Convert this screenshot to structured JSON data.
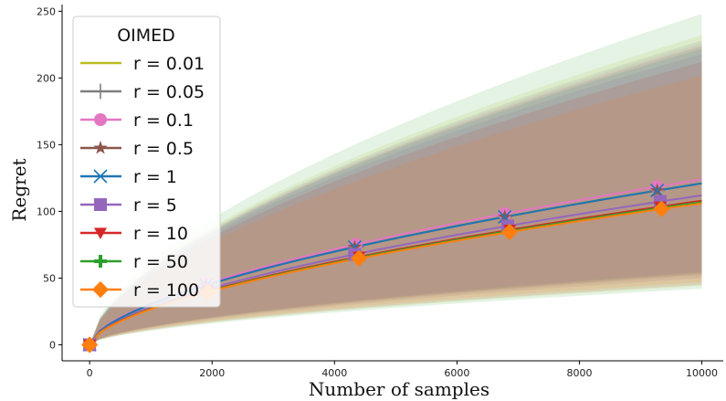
{
  "chart_data": {
    "type": "line",
    "xlabel": "Number of samples",
    "ylabel": "Regret",
    "xlim": [
      -450,
      10350
    ],
    "ylim": [
      -12,
      255
    ],
    "xticks": [
      0,
      2000,
      4000,
      6000,
      8000,
      10000
    ],
    "yticks": [
      0,
      50,
      100,
      150,
      200,
      250
    ],
    "grid": false,
    "legend": {
      "title": "OIMED",
      "placement": "top-left"
    },
    "series": [
      {
        "name": "r = 0.01",
        "color": "#bcbd22",
        "marker": "none",
        "final": 108,
        "band_upper": 232,
        "band_lower": 44,
        "marker_x": []
      },
      {
        "name": "r = 0.05",
        "color": "#7f7f7f",
        "marker": "plus",
        "final": 121,
        "band_upper": 228,
        "band_lower": 52,
        "marker_x": [
          0,
          1900,
          4350,
          6780,
          9270
        ]
      },
      {
        "name": "r = 0.1",
        "color": "#e377c2",
        "marker": "circle",
        "final": 124,
        "band_upper": 226,
        "band_lower": 55,
        "marker_x": [
          0,
          1900,
          4350,
          6780,
          9270
        ]
      },
      {
        "name": "r = 0.5",
        "color": "#8c564b",
        "marker": "star",
        "final": 121,
        "band_upper": 224,
        "band_lower": 53,
        "marker_x": [
          0,
          1900,
          4330,
          6780,
          9270
        ]
      },
      {
        "name": "r = 1",
        "color": "#1f77b4",
        "marker": "x",
        "final": 121,
        "band_upper": 222,
        "band_lower": 54,
        "marker_x": [
          0,
          1900,
          4330,
          6780,
          9270
        ]
      },
      {
        "name": "r = 5",
        "color": "#9467bd",
        "marker": "square",
        "final": 112,
        "band_upper": 218,
        "band_lower": 50,
        "marker_x": [
          0,
          1920,
          4330,
          6830,
          9320
        ]
      },
      {
        "name": "r = 10",
        "color": "#d62728",
        "marker": "triangle",
        "final": 108,
        "band_upper": 212,
        "band_lower": 45,
        "marker_x": [
          0,
          1930,
          4400,
          6860,
          9320
        ]
      },
      {
        "name": "r = 50",
        "color": "#2ca02c",
        "marker": "plusbold",
        "final": 107,
        "band_upper": 248,
        "band_lower": 42,
        "marker_x": [
          0,
          1930,
          4400,
          6860,
          9340
        ]
      },
      {
        "name": "r = 100",
        "color": "#ff7f0e",
        "marker": "diamond",
        "final": 106,
        "band_upper": 202,
        "band_lower": 47,
        "marker_x": [
          0,
          1930,
          4400,
          6860,
          9340
        ]
      }
    ]
  }
}
